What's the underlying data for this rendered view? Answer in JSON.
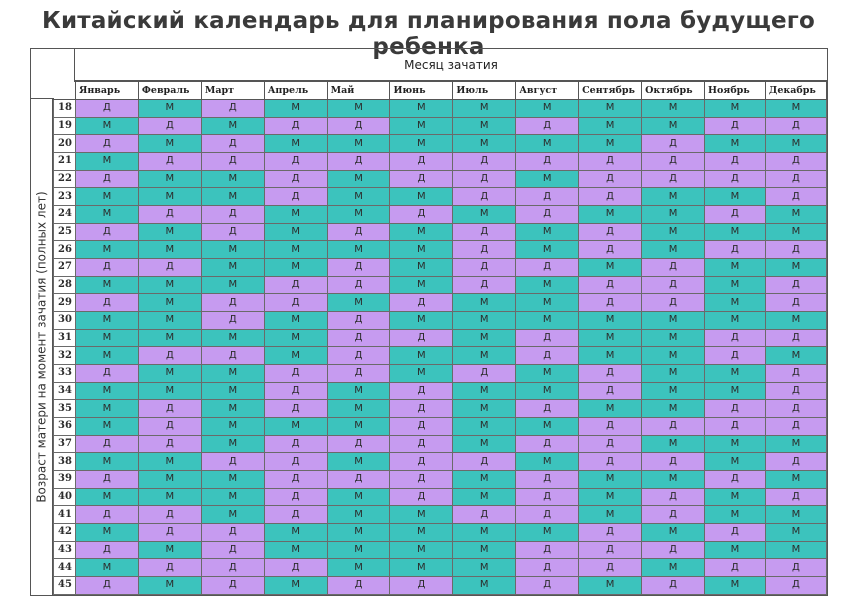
{
  "title": "Китайский календарь для планирования пола будущего ребенка",
  "header": {
    "month_title": "Месяц зачатия",
    "age_axis_label": "Возраст матери на момент зачатия (полных лет)",
    "months": [
      "Январь",
      "Февраль",
      "Март",
      "Апрель",
      "Май",
      "Июнь",
      "Июль",
      "Август",
      "Сентябрь",
      "Октябрь",
      "Ноябрь",
      "Декабрь"
    ]
  },
  "colors": {
    "M": "#3cc3bd",
    "Д": "#c69bf0"
  },
  "rows": [
    {
      "age": "18",
      "cells": [
        "Д",
        "М",
        "Д",
        "М",
        "М",
        "М",
        "М",
        "М",
        "М",
        "М",
        "М",
        "М"
      ]
    },
    {
      "age": "19",
      "cells": [
        "М",
        "Д",
        "М",
        "Д",
        "Д",
        "М",
        "М",
        "Д",
        "М",
        "М",
        "Д",
        "Д"
      ]
    },
    {
      "age": "20",
      "cells": [
        "Д",
        "М",
        "Д",
        "М",
        "М",
        "М",
        "М",
        "М",
        "М",
        "Д",
        "М",
        "М"
      ]
    },
    {
      "age": "21",
      "cells": [
        "М",
        "Д",
        "Д",
        "Д",
        "Д",
        "Д",
        "Д",
        "Д",
        "Д",
        "Д",
        "Д",
        "Д"
      ]
    },
    {
      "age": "22",
      "cells": [
        "Д",
        "М",
        "М",
        "Д",
        "М",
        "Д",
        "Д",
        "М",
        "Д",
        "Д",
        "Д",
        "Д"
      ]
    },
    {
      "age": "23",
      "cells": [
        "М",
        "М",
        "М",
        "Д",
        "М",
        "М",
        "Д",
        "Д",
        "Д",
        "М",
        "М",
        "Д"
      ]
    },
    {
      "age": "24",
      "cells": [
        "М",
        "Д",
        "Д",
        "М",
        "М",
        "Д",
        "М",
        "Д",
        "М",
        "М",
        "Д",
        "М"
      ]
    },
    {
      "age": "25",
      "cells": [
        "Д",
        "М",
        "Д",
        "М",
        "Д",
        "М",
        "Д",
        "М",
        "Д",
        "М",
        "М",
        "М"
      ]
    },
    {
      "age": "26",
      "cells": [
        "М",
        "М",
        "М",
        "М",
        "М",
        "М",
        "Д",
        "М",
        "Д",
        "М",
        "Д",
        "Д"
      ]
    },
    {
      "age": "27",
      "cells": [
        "Д",
        "Д",
        "М",
        "М",
        "Д",
        "М",
        "Д",
        "Д",
        "М",
        "Д",
        "М",
        "М"
      ]
    },
    {
      "age": "28",
      "cells": [
        "М",
        "М",
        "М",
        "Д",
        "Д",
        "М",
        "Д",
        "М",
        "Д",
        "Д",
        "М",
        "Д"
      ]
    },
    {
      "age": "29",
      "cells": [
        "Д",
        "М",
        "Д",
        "Д",
        "М",
        "Д",
        "М",
        "М",
        "Д",
        "Д",
        "М",
        "Д"
      ]
    },
    {
      "age": "30",
      "cells": [
        "М",
        "М",
        "Д",
        "М",
        "Д",
        "М",
        "М",
        "М",
        "М",
        "М",
        "М",
        "М"
      ]
    },
    {
      "age": "31",
      "cells": [
        "М",
        "М",
        "М",
        "М",
        "Д",
        "Д",
        "М",
        "Д",
        "М",
        "М",
        "Д",
        "Д"
      ]
    },
    {
      "age": "32",
      "cells": [
        "М",
        "Д",
        "Д",
        "М",
        "Д",
        "М",
        "М",
        "Д",
        "М",
        "М",
        "Д",
        "М"
      ]
    },
    {
      "age": "33",
      "cells": [
        "Д",
        "М",
        "М",
        "Д",
        "Д",
        "М",
        "Д",
        "М",
        "Д",
        "М",
        "М",
        "Д"
      ]
    },
    {
      "age": "34",
      "cells": [
        "М",
        "М",
        "М",
        "Д",
        "М",
        "Д",
        "М",
        "М",
        "Д",
        "М",
        "М",
        "Д"
      ]
    },
    {
      "age": "35",
      "cells": [
        "М",
        "Д",
        "М",
        "Д",
        "М",
        "Д",
        "М",
        "Д",
        "М",
        "М",
        "Д",
        "Д"
      ]
    },
    {
      "age": "36",
      "cells": [
        "М",
        "Д",
        "М",
        "М",
        "М",
        "Д",
        "М",
        "М",
        "Д",
        "Д",
        "Д",
        "Д"
      ]
    },
    {
      "age": "37",
      "cells": [
        "Д",
        "Д",
        "М",
        "Д",
        "Д",
        "Д",
        "М",
        "Д",
        "Д",
        "М",
        "М",
        "М"
      ]
    },
    {
      "age": "38",
      "cells": [
        "М",
        "М",
        "Д",
        "Д",
        "М",
        "Д",
        "Д",
        "М",
        "Д",
        "Д",
        "М",
        "Д"
      ]
    },
    {
      "age": "39",
      "cells": [
        "Д",
        "М",
        "М",
        "Д",
        "Д",
        "Д",
        "М",
        "Д",
        "М",
        "М",
        "Д",
        "М"
      ]
    },
    {
      "age": "40",
      "cells": [
        "М",
        "М",
        "М",
        "Д",
        "М",
        "Д",
        "М",
        "Д",
        "М",
        "Д",
        "М",
        "Д"
      ]
    },
    {
      "age": "41",
      "cells": [
        "Д",
        "Д",
        "М",
        "Д",
        "М",
        "М",
        "Д",
        "Д",
        "М",
        "Д",
        "М",
        "М"
      ]
    },
    {
      "age": "42",
      "cells": [
        "М",
        "Д",
        "Д",
        "М",
        "М",
        "М",
        "М",
        "М",
        "Д",
        "М",
        "Д",
        "М"
      ]
    },
    {
      "age": "43",
      "cells": [
        "Д",
        "М",
        "Д",
        "М",
        "М",
        "М",
        "М",
        "Д",
        "Д",
        "Д",
        "М",
        "М"
      ]
    },
    {
      "age": "44",
      "cells": [
        "М",
        "Д",
        "Д",
        "Д",
        "М",
        "М",
        "М",
        "Д",
        "Д",
        "М",
        "Д",
        "Д"
      ]
    },
    {
      "age": "45",
      "cells": [
        "Д",
        "М",
        "Д",
        "М",
        "Д",
        "Д",
        "М",
        "Д",
        "М",
        "Д",
        "М",
        "Д"
      ]
    }
  ]
}
